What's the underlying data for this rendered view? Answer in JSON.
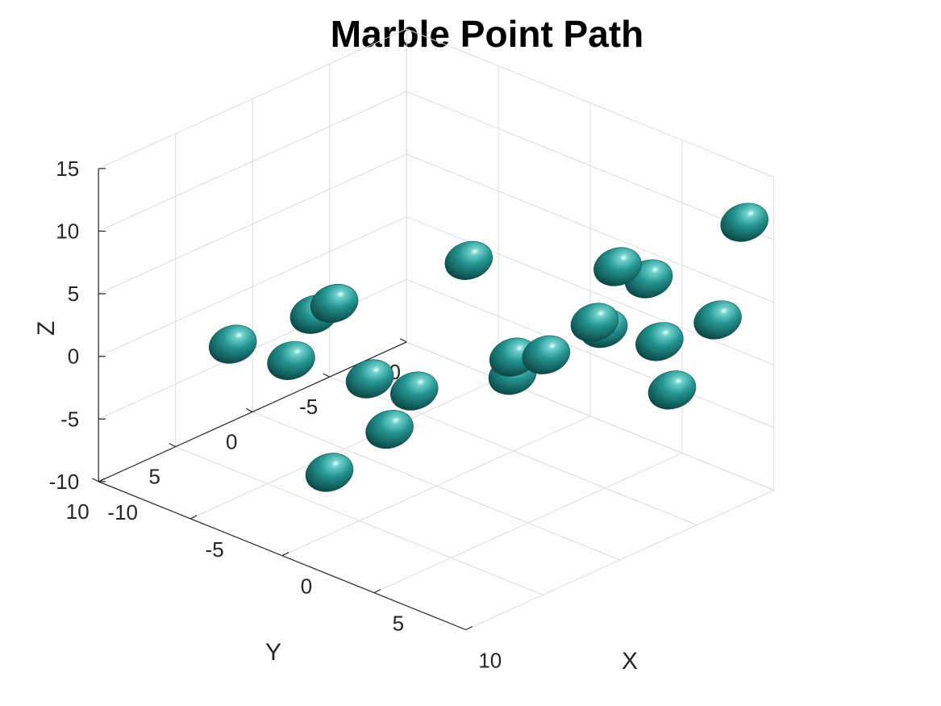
{
  "chart_data": {
    "type": "scatter3d",
    "title": "Marble Point Path",
    "xlabel": "X",
    "ylabel": "Y",
    "zlabel": "Z",
    "xlim": [
      -10,
      10
    ],
    "ylim": [
      -10,
      10
    ],
    "zlim": [
      -10,
      15
    ],
    "xticks": [
      -10,
      -5,
      0,
      5,
      10
    ],
    "yticks": [
      -10,
      -5,
      0,
      5,
      10
    ],
    "zticks": [
      -10,
      -5,
      0,
      5,
      10,
      15
    ],
    "xtick_labels": [
      "-10",
      "-5",
      "0",
      "5",
      "10"
    ],
    "ytick_labels": [
      "-10",
      "-5",
      "0",
      "5",
      "10"
    ],
    "ztick_labels": [
      "-10",
      "-5",
      "0",
      "5",
      "10",
      "15"
    ],
    "grid": true,
    "marker_color": "#2fa3a0",
    "marker_dark_color": "#0d4d4b",
    "points": [
      {
        "x": -4.2,
        "y": 8.2,
        "z": 3.4
      },
      {
        "x": -2.2,
        "y": 6.8,
        "z": 2.5
      },
      {
        "x": -2.8,
        "y": 4.6,
        "z": 4.6
      },
      {
        "x": 2.5,
        "y": 9.6,
        "z": 11.4
      },
      {
        "x": -0.6,
        "y": 3.6,
        "z": 0.2
      },
      {
        "x": 0.9,
        "y": 2.5,
        "z": -0.5
      },
      {
        "x": -1.2,
        "y": 1.6,
        "z": -5.3
      },
      {
        "x": -3.3,
        "y": 3.0,
        "z": -9.2
      },
      {
        "x": 4.2,
        "y": 2.9,
        "z": 12.1
      },
      {
        "x": 5.9,
        "y": -0.1,
        "z": 3.9
      },
      {
        "x": 1.6,
        "y": -3.1,
        "z": -0.5
      },
      {
        "x": 1.3,
        "y": -3.4,
        "z": -2.3
      },
      {
        "x": 9.2,
        "y": -0.8,
        "z": 12.5
      },
      {
        "x": 7.7,
        "y": -1.1,
        "z": 7.0
      },
      {
        "x": 8.8,
        "y": -4.0,
        "z": 4.5
      },
      {
        "x": 6.6,
        "y": -3.0,
        "z": 4.8
      },
      {
        "x": 8.9,
        "y": -4.7,
        "z": 0.3
      },
      {
        "x": 8.7,
        "y": -7.9,
        "z": 4.0
      },
      {
        "x": 8.8,
        "y": -3.3,
        "z": 9.9
      },
      {
        "x": 9.4,
        "y": -8.8,
        "z": 11.7
      }
    ]
  }
}
